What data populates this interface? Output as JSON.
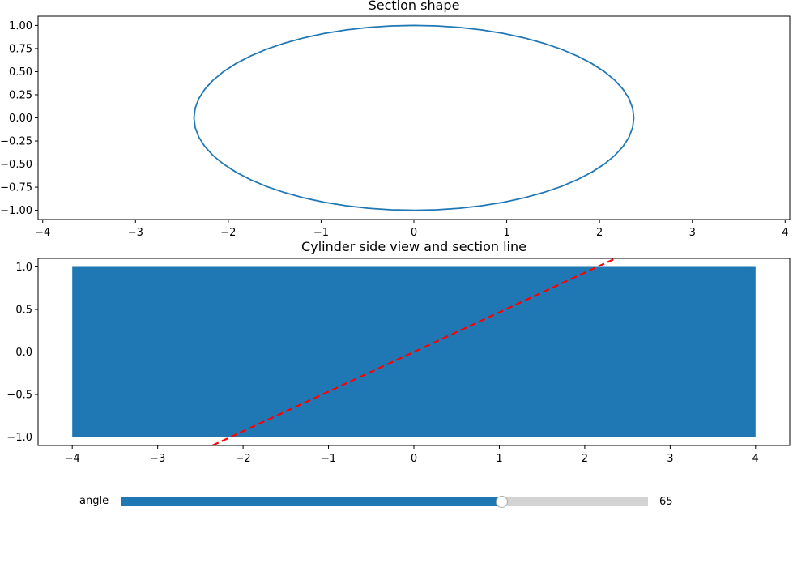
{
  "colors": {
    "series": "#1f77b4",
    "section_line": "#ff0000",
    "slider_fill": "#1f77b4",
    "slider_track": "#d3d3d3"
  },
  "chart_data": [
    {
      "type": "line",
      "title": "Section shape",
      "xlabel": "",
      "ylabel": "",
      "xlim": [
        -4.05,
        4.05
      ],
      "ylim": [
        -1.1,
        1.1
      ],
      "xticks": [
        -4,
        -3,
        -2,
        -1,
        0,
        1,
        2,
        3,
        4
      ],
      "xtick_labels": [
        "−4",
        "−3",
        "−2",
        "−1",
        "0",
        "1",
        "2",
        "3",
        "4"
      ],
      "yticks": [
        1.0,
        0.75,
        0.5,
        0.25,
        0.0,
        -0.25,
        -0.5,
        -0.75,
        -1.0
      ],
      "ytick_labels": [
        "1.00",
        "0.75",
        "0.50",
        "0.25",
        "0.00",
        "−0.25",
        "−0.50",
        "−0.75",
        "−1.00"
      ],
      "series": [
        {
          "shape": "ellipse",
          "semi_axis_x": 2.37,
          "semi_axis_y": 1.0,
          "center": [
            0,
            0
          ],
          "color": "#1f77b4"
        }
      ]
    },
    {
      "type": "bar",
      "title": "Cylinder side view and section line",
      "xlabel": "",
      "ylabel": "",
      "xlim": [
        -4.4,
        4.4
      ],
      "ylim": [
        -1.1,
        1.1
      ],
      "xticks": [
        -4,
        -3,
        -2,
        -1,
        0,
        1,
        2,
        3,
        4
      ],
      "xtick_labels": [
        "−4",
        "−3",
        "−2",
        "−1",
        "0",
        "1",
        "2",
        "3",
        "4"
      ],
      "yticks": [
        1.0,
        0.5,
        0.0,
        -0.5,
        -1.0
      ],
      "ytick_labels": [
        "1.0",
        "0.5",
        "0.0",
        "−0.5",
        "−1.0"
      ],
      "rectangle": {
        "x": [
          -4,
          4
        ],
        "y": [
          -1,
          1
        ],
        "color": "#1f77b4"
      },
      "section_line": {
        "slope": 0.466,
        "intercept": 0,
        "style": "dashed",
        "color": "#ff0000"
      }
    }
  ],
  "slider": {
    "label": "angle",
    "value": 65,
    "value_text": "65",
    "min": 0,
    "max": 90
  }
}
